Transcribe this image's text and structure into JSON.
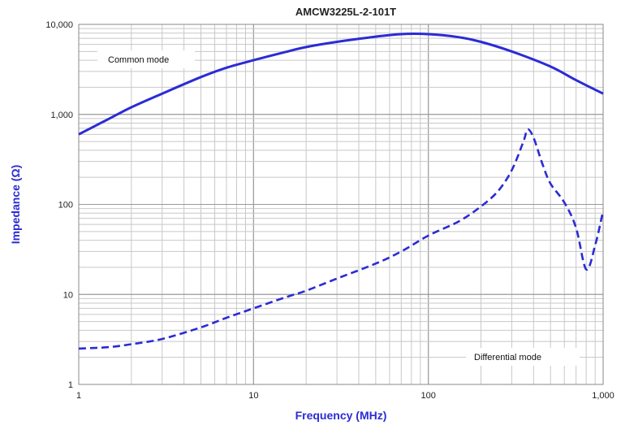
{
  "chart_data": {
    "type": "line",
    "title": "AMCW3225L-2-101T",
    "xlabel": "Frequency (MHz)",
    "ylabel": "Impedance (Ω)",
    "x_scale": "log",
    "y_scale": "log",
    "xlim": [
      1,
      1000
    ],
    "ylim": [
      1,
      10000
    ],
    "x_ticks": [
      "1",
      "10",
      "100",
      "1,000"
    ],
    "y_ticks": [
      "1",
      "10",
      "100",
      "1,000",
      "10,000"
    ],
    "grid": true,
    "colors": {
      "line": "#2b2bd6",
      "axis_label": "#2b2bd6",
      "grid": "#c8c8c8",
      "frame": "#8a8a8a"
    },
    "annotations": [
      "Common mode",
      "Differential mode"
    ],
    "series": [
      {
        "name": "Common mode",
        "style": "solid",
        "x": [
          1,
          1.5,
          2,
          3,
          5,
          7,
          10,
          15,
          20,
          30,
          50,
          70,
          100,
          150,
          200,
          300,
          500,
          700,
          1000
        ],
        "y": [
          600,
          900,
          1200,
          1700,
          2600,
          3300,
          4000,
          4900,
          5600,
          6400,
          7300,
          7800,
          7800,
          7200,
          6400,
          5000,
          3400,
          2400,
          1700
        ]
      },
      {
        "name": "Differential mode",
        "style": "dashed",
        "x": [
          1,
          1.5,
          2,
          3,
          5,
          7,
          10,
          15,
          20,
          30,
          50,
          70,
          100,
          150,
          200,
          250,
          300,
          350,
          370,
          400,
          450,
          500,
          600,
          700,
          800,
          900,
          1000
        ],
        "y": [
          2.5,
          2.6,
          2.8,
          3.2,
          4.3,
          5.5,
          7,
          9.2,
          11,
          15,
          22,
          30,
          45,
          65,
          95,
          140,
          240,
          500,
          680,
          550,
          280,
          170,
          105,
          55,
          19,
          35,
          85
        ]
      }
    ]
  }
}
